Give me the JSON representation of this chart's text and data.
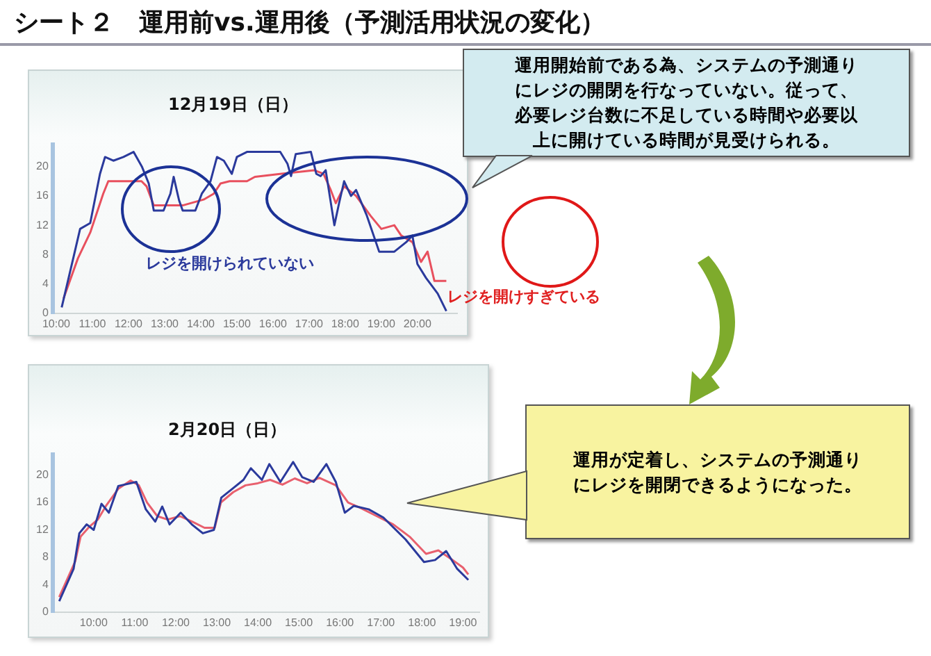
{
  "chart_data": [
    {
      "type": "line",
      "title": "シート２　運用前vs.運用後（予測活用状況の変化）",
      "subtitle": "12月19日（日）",
      "annotations": [
        "運用開始前である為、システムの予測通りにレジの開閉を行なっていない。従って、必要レジ台数に不足している時間や必要以上に開けている時間が見受けられる。",
        "レジを開けられていない",
        "レジを開けすぎている"
      ],
      "series": [
        {
          "color": "#2b3a9c",
          "x": [
            10.15,
            10.47,
            10.66,
            10.94,
            11.21,
            11.35,
            11.58,
            11.86,
            12.14,
            12.37,
            12.56,
            12.7,
            12.97,
            13.16,
            13.25,
            13.4,
            13.5,
            13.85,
            14.03,
            14.27,
            14.45,
            14.64,
            14.86,
            15.0,
            15.28,
            16.2,
            16.4,
            16.5,
            16.63,
            17.05,
            17.2,
            17.32,
            17.46,
            17.7,
            17.83,
            17.97,
            18.16,
            18.3,
            18.6,
            18.94,
            19.36,
            19.69,
            19.86,
            20.0,
            20.24,
            20.56,
            20.8
          ],
          "values": [
            0.8,
            7.5,
            11.5,
            12.3,
            19,
            21.3,
            20.8,
            21.3,
            22,
            20,
            17.7,
            14,
            14,
            16.3,
            18.6,
            15.4,
            14,
            14,
            16.3,
            18,
            21.3,
            20.8,
            19,
            21.3,
            22,
            22,
            20.4,
            18.7,
            21.7,
            22,
            19,
            18.7,
            19.5,
            12,
            15,
            18,
            16,
            16.8,
            13.3,
            8.4,
            8.4,
            9.7,
            10.6,
            6.7,
            4.8,
            2.7,
            0.3
          ]
        },
        {
          "color": "#e8505e",
          "x": [
            10.2,
            10.6,
            10.94,
            11.3,
            11.44,
            12.36,
            12.5,
            12.7,
            13.5,
            14.08,
            14.36,
            14.55,
            14.8,
            15.28,
            15.5,
            16.2,
            17.14,
            17.4,
            17.6,
            17.74,
            17.97,
            18.3,
            18.7,
            19.0,
            19.36,
            19.55,
            19.86,
            20.1,
            20.28,
            20.47,
            20.8
          ],
          "values": [
            2,
            7.5,
            11,
            16.3,
            18,
            18,
            17.3,
            14.7,
            14.7,
            15.5,
            16.3,
            17.7,
            18,
            18,
            18.6,
            19,
            19.5,
            19,
            16.8,
            15,
            17.3,
            16,
            13.3,
            11.5,
            12,
            10.6,
            9.7,
            7,
            8.4,
            4.4,
            4.4
          ]
        }
      ],
      "xlim": [
        9.9,
        21.1
      ],
      "xticks": [
        {
          "value": 10,
          "label": "10:00"
        },
        {
          "value": 11,
          "label": "11:00"
        },
        {
          "value": 12,
          "label": "12:00"
        },
        {
          "value": 13,
          "label": "13:00"
        },
        {
          "value": 14,
          "label": "14:00"
        },
        {
          "value": 15,
          "label": "15:00"
        },
        {
          "value": 16,
          "label": "16:00"
        },
        {
          "value": 17,
          "label": "17:00"
        },
        {
          "value": 18,
          "label": "18:00"
        },
        {
          "value": 19,
          "label": "19:00"
        },
        {
          "value": 20,
          "label": "20:00"
        }
      ],
      "ylim": [
        0,
        23
      ],
      "yticks": [
        0,
        4,
        8,
        12,
        16,
        20
      ],
      "marker": "none",
      "line_style": "solid"
    },
    {
      "type": "line",
      "subtitle": "2月20日（日）",
      "annotations": [
        "運用が定着し、システムの予測通りにレジを開閉できるようになった。"
      ],
      "series": [
        {
          "color": "#2b3a9c",
          "x": [
            9.16,
            9.51,
            9.65,
            9.83,
            10.0,
            10.19,
            10.37,
            10.6,
            11.04,
            11.27,
            11.5,
            11.67,
            11.85,
            12.12,
            12.39,
            12.66,
            12.93,
            13.11,
            13.38,
            13.65,
            13.83,
            14.1,
            14.28,
            14.55,
            14.86,
            15.08,
            15.36,
            15.67,
            15.9,
            16.12,
            16.34,
            16.7,
            17.06,
            17.6,
            18.05,
            18.32,
            18.59,
            18.86,
            19.13
          ],
          "values": [
            1.6,
            6.3,
            11.5,
            12.8,
            12,
            15.8,
            14.5,
            18.4,
            19,
            15,
            13.2,
            15.4,
            12.8,
            14.5,
            12.8,
            11.5,
            12,
            16.7,
            18,
            19.3,
            21,
            19.3,
            21.6,
            19,
            21.9,
            19.7,
            19,
            21.6,
            19,
            14.5,
            15.5,
            15,
            13.8,
            10.6,
            7.3,
            7.6,
            8.9,
            6.3,
            4.7
          ]
        },
        {
          "color": "#e8606e",
          "x": [
            9.16,
            9.55,
            9.68,
            9.9,
            10.1,
            10.3,
            10.6,
            10.9,
            11.1,
            11.3,
            11.55,
            11.8,
            12.1,
            12.4,
            12.7,
            12.95,
            13.1,
            13.4,
            13.7,
            14.0,
            14.3,
            14.6,
            14.9,
            15.2,
            15.5,
            15.9,
            16.2,
            16.5,
            16.9,
            17.3,
            17.7,
            18.1,
            18.4,
            18.7,
            19.0,
            19.13
          ],
          "values": [
            2.2,
            7.4,
            11,
            12.5,
            13.5,
            15.5,
            18,
            19.2,
            18.5,
            16,
            14,
            13.5,
            14,
            13.2,
            12.3,
            12.3,
            16,
            17.5,
            18.5,
            18.8,
            19.3,
            18.6,
            19.5,
            18.8,
            19.6,
            18.5,
            16,
            15.2,
            14,
            12.8,
            11,
            8.5,
            9,
            7.8,
            6.5,
            5.5
          ]
        }
      ],
      "xlim": [
        9.0,
        19.4
      ],
      "xticks": [
        {
          "value": 10,
          "label": "10:00"
        },
        {
          "value": 11,
          "label": "11:00"
        },
        {
          "value": 12,
          "label": "12:00"
        },
        {
          "value": 13,
          "label": "13:00"
        },
        {
          "value": 14,
          "label": "14:00"
        },
        {
          "value": 15,
          "label": "15:00"
        },
        {
          "value": 16,
          "label": "16:00"
        },
        {
          "value": 17,
          "label": "17:00"
        },
        {
          "value": 18,
          "label": "18:00"
        },
        {
          "value": 19,
          "label": "19:00"
        }
      ],
      "ylim": [
        0,
        23
      ],
      "yticks": [
        0,
        4,
        8,
        12,
        16,
        20
      ],
      "marker": "none",
      "line_style": "solid"
    }
  ]
}
